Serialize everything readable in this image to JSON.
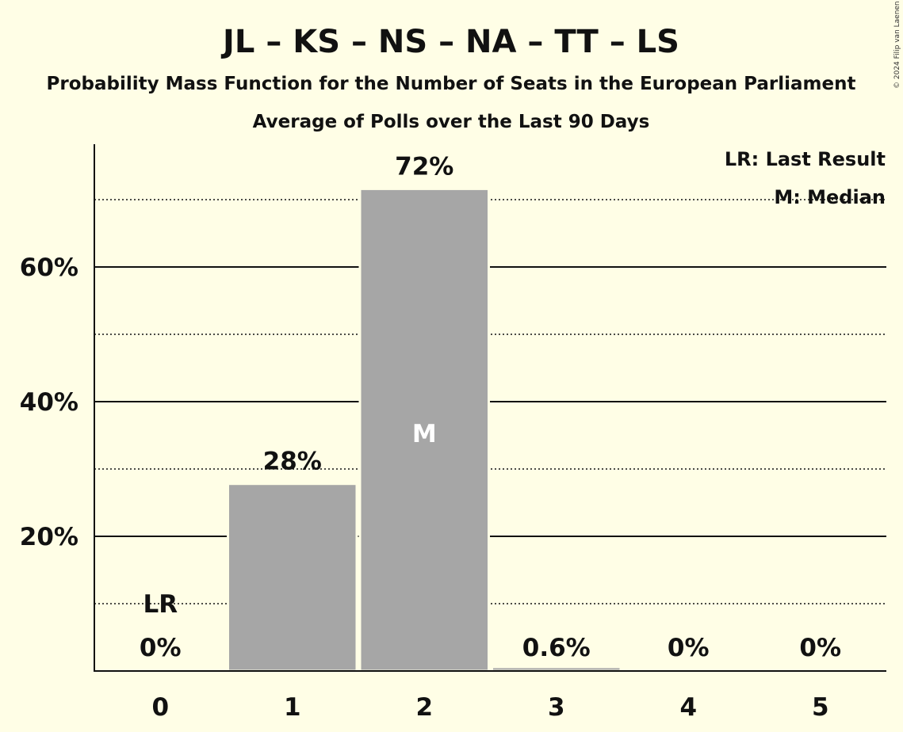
{
  "chart_data": {
    "type": "bar",
    "title": "JL – KS – NS – NA – TT – LS",
    "subtitle": "Probability Mass Function for the Number of Seats in the European Parliament",
    "subtitle2": "Average of Polls over the Last 90 Days",
    "copyright": "© 2024 Filip van Laenen",
    "categories": [
      "0",
      "1",
      "2",
      "3",
      "4",
      "5"
    ],
    "values": [
      0,
      27.8,
      71.6,
      0.6,
      0,
      0
    ],
    "data_labels": [
      "0%",
      "28%",
      "72%",
      "0.6%",
      "0%",
      "0%"
    ],
    "ylim": [
      0,
      78
    ],
    "yticks": [
      {
        "value": 20,
        "label": "20%"
      },
      {
        "value": 40,
        "label": "40%"
      },
      {
        "value": 60,
        "label": "60%"
      }
    ],
    "dotted_gridlines": [
      10,
      30,
      50,
      70
    ],
    "last_result": {
      "category": "0",
      "label": "LR"
    },
    "median": {
      "category": "2",
      "label": "M"
    },
    "legend": {
      "placement": "top-right",
      "items": [
        "LR: Last Result",
        "M: Median"
      ]
    },
    "colors": {
      "background": "#FFFEE6",
      "bar": "#A6A6A6",
      "text": "#111111"
    }
  }
}
